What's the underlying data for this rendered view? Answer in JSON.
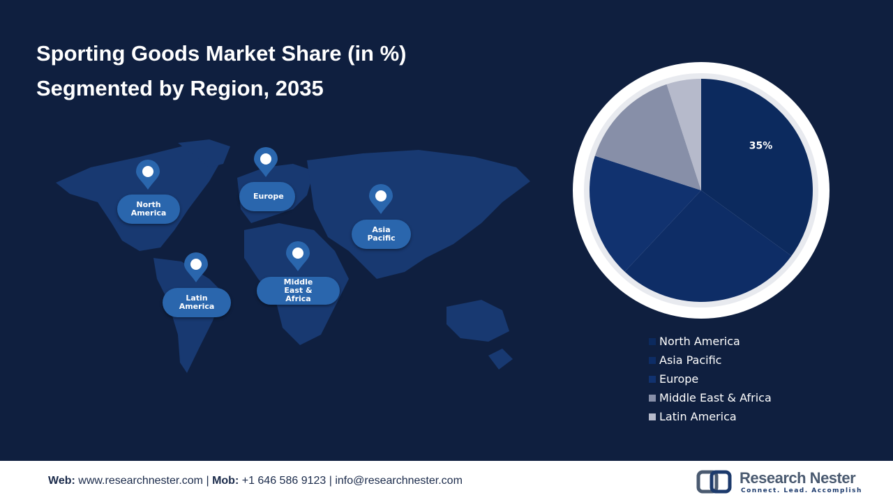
{
  "chart_data": {
    "type": "pie",
    "title": [
      "Sporting Goods Market Share (in %)",
      "Segmented by Region, 2035"
    ],
    "categories": [
      "North America",
      "Asia Pacific",
      "Europe",
      "Middle East & Africa",
      "Latin America"
    ],
    "values": [
      35,
      27,
      18,
      15,
      5
    ],
    "value_labels": [
      "35%",
      null,
      null,
      null,
      null
    ],
    "colors": [
      "#0c2a5e",
      "#0e2d66",
      "#11326f",
      "#878fa8",
      "#b6bacb"
    ]
  },
  "map": {
    "pins": [
      "North America",
      "Europe",
      "Asia Pacific",
      "Latin America",
      "Middle East & Africa"
    ]
  },
  "footer": {
    "web_label": "Web:",
    "web": "www.researchnester.com",
    "sep": "|",
    "mob_label": "Mob:",
    "mob": "+1 646 586 9123",
    "email": "info@researchnester.com"
  },
  "logo": {
    "name": "Research Nester",
    "tagline": "Connect. Lead. Accomplish"
  }
}
